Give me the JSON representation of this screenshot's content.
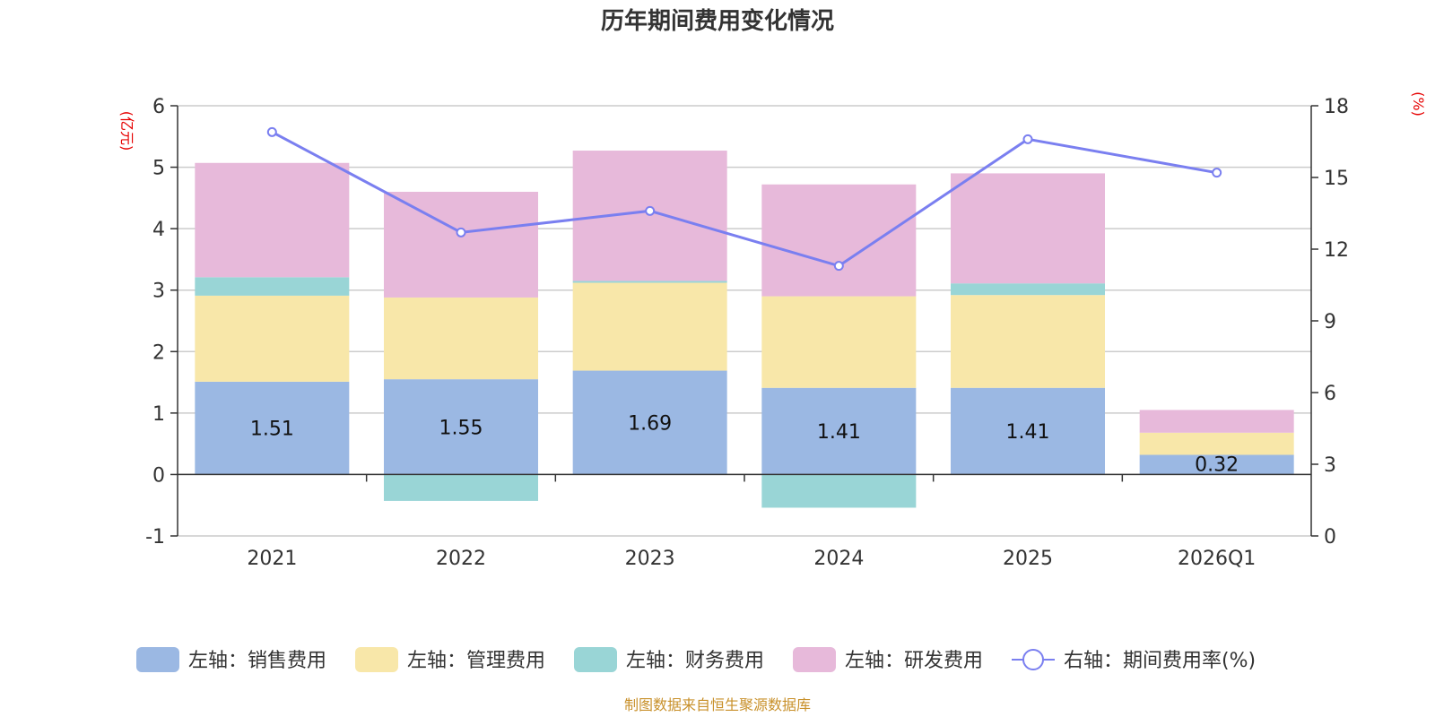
{
  "chart_data": {
    "type": "bar",
    "title": "历年期间费用变化情况",
    "categories": [
      "2021",
      "2022",
      "2023",
      "2024",
      "2025",
      "2026Q1"
    ],
    "y_left": {
      "unit": "(亿元)",
      "min": -1,
      "max": 6,
      "ticks": [
        -1,
        0,
        1,
        2,
        3,
        4,
        5,
        6
      ]
    },
    "y_right": {
      "unit": "(%)",
      "min": 0,
      "max": 18,
      "ticks": [
        0,
        3,
        6,
        9,
        12,
        15,
        18
      ]
    },
    "series": [
      {
        "name": "左轴：销售费用",
        "kind": "bar",
        "axis": "left",
        "color": "#9bb8e3",
        "values": [
          1.51,
          1.55,
          1.69,
          1.41,
          1.41,
          0.32
        ]
      },
      {
        "name": "左轴：管理费用",
        "kind": "bar",
        "axis": "left",
        "color": "#f8e7a9",
        "values": [
          1.4,
          1.33,
          1.43,
          1.49,
          1.51,
          0.36
        ]
      },
      {
        "name": "左轴：财务费用",
        "kind": "bar",
        "axis": "left",
        "color": "#99d5d6",
        "values": [
          0.3,
          -0.43,
          0.03,
          -0.54,
          0.19,
          0.0
        ]
      },
      {
        "name": "左轴：研发费用",
        "kind": "bar",
        "axis": "left",
        "color": "#e7b9da",
        "values": [
          1.86,
          1.72,
          2.12,
          1.82,
          1.79,
          0.37
        ]
      },
      {
        "name": "右轴：期间费用率(%)",
        "kind": "line",
        "axis": "right",
        "color": "#7a7ff0",
        "values": [
          16.9,
          12.7,
          13.6,
          11.3,
          16.6,
          15.2
        ]
      }
    ],
    "data_labels": [
      "1.51",
      "1.55",
      "1.69",
      "1.41",
      "1.41",
      "0.32"
    ]
  },
  "footer": "制图数据来自恒生聚源数据库"
}
